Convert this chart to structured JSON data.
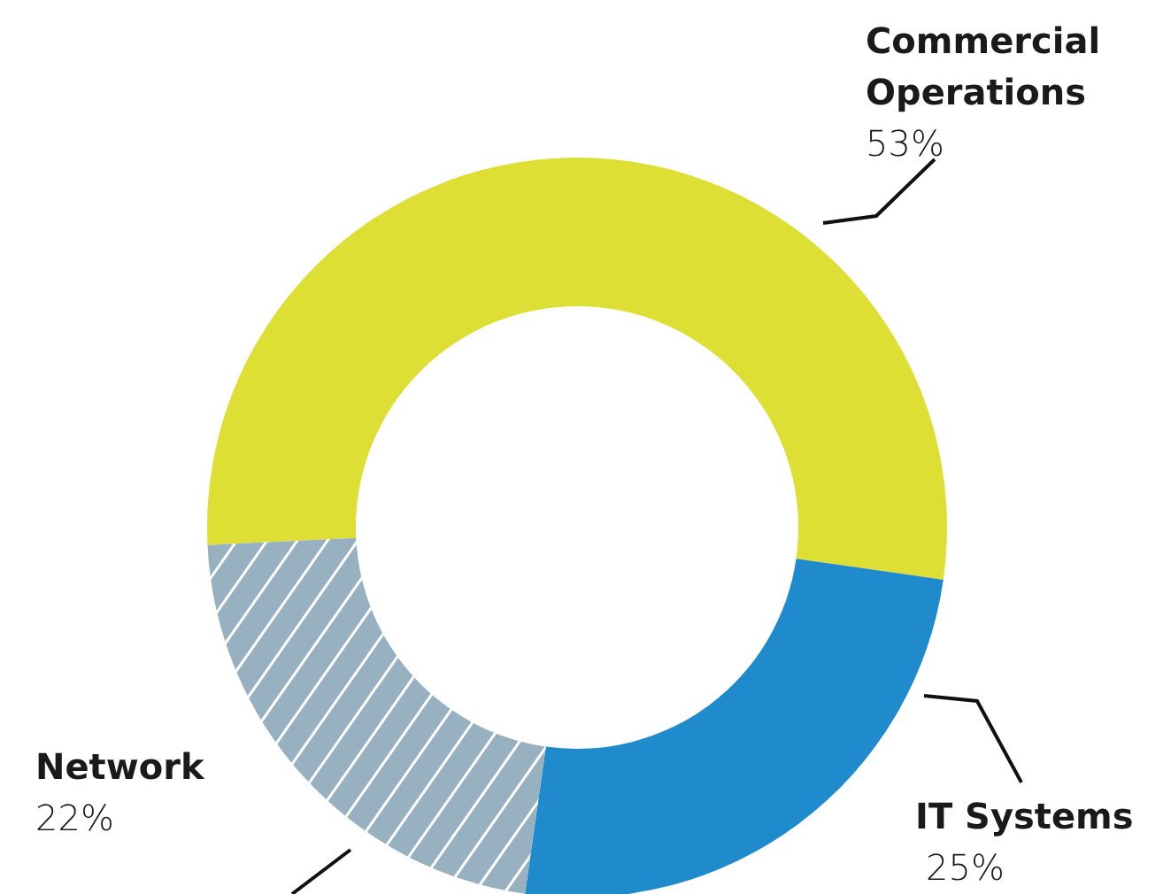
{
  "chart_data": {
    "type": "donut",
    "categories": [
      "Commercial Operations",
      "IT Systems",
      "Network"
    ],
    "values": [
      53,
      25,
      22
    ],
    "value_labels": [
      "53%",
      "25%",
      "22%"
    ],
    "colors": [
      "#dddf35",
      "#208bcc",
      "#97b1c0"
    ]
  }
}
